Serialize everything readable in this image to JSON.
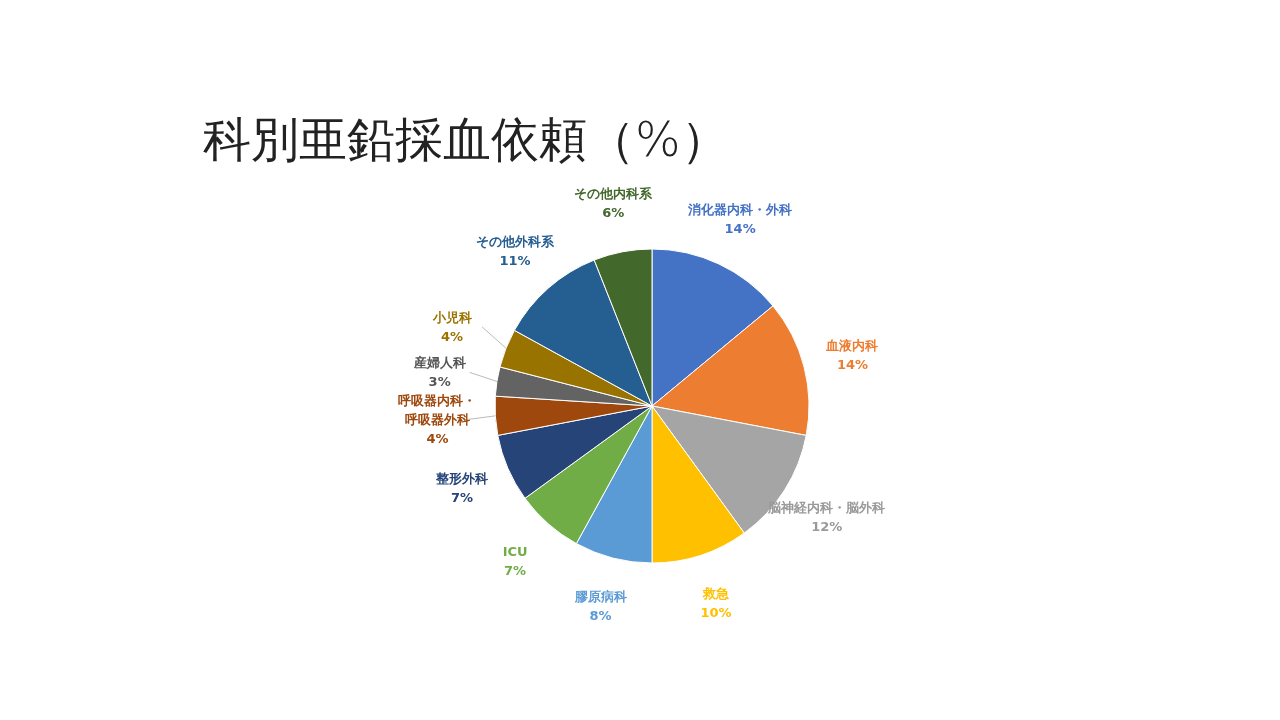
{
  "chart_data": {
    "type": "pie",
    "title": "科別亜鉛採血依頼（%）",
    "categories": [
      "消化器内科・外科",
      "血液内科",
      "脳神経内科・脳外科",
      "救急",
      "膠原病科",
      "ICU",
      "整形外科",
      "呼吸器内科・呼吸器外科",
      "産婦人科",
      "小児科",
      "その他外科系",
      "その他内科系"
    ],
    "values": [
      14,
      14,
      12,
      10,
      8,
      7,
      7,
      4,
      3,
      4,
      11,
      6
    ],
    "colors": [
      "#4472c4",
      "#ed7d31",
      "#a5a5a5",
      "#ffc000",
      "#5b9bd5",
      "#70ad47",
      "#264478",
      "#9e480e",
      "#636363",
      "#997300",
      "#255e91",
      "#43682b"
    ],
    "value_labels": [
      "14%",
      "14%",
      "12%",
      "10%",
      "8%",
      "7%",
      "7%",
      "4%",
      "3%",
      "4%",
      "11%",
      "6%"
    ]
  }
}
